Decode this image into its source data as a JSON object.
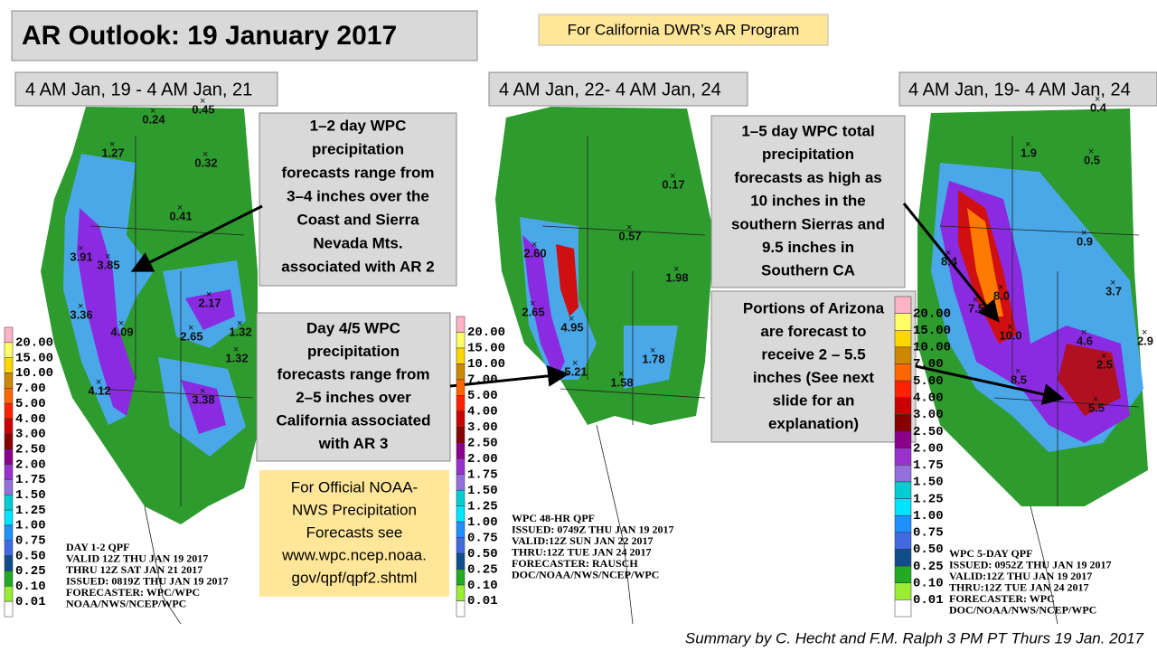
{
  "header": {
    "title": "AR Outlook: 19 January 2017",
    "banner": "For California DWR’s AR Program"
  },
  "panels": [
    {
      "period": "4 AM Jan, 19 - 4 AM Jan, 21",
      "map_values": [
        "0.24",
        "0.45",
        "1.27",
        "0.32",
        "0.41",
        "3.91",
        "3.85",
        "3.36",
        "4.09",
        "2.17",
        "2.65",
        "1.32",
        "1.32",
        "4.12",
        "3.38"
      ],
      "legend": [
        "20.00",
        "15.00",
        "10.00",
        "7.00",
        "5.00",
        "4.00",
        "3.00",
        "2.50",
        "2.00",
        "1.75",
        "1.50",
        "1.25",
        "1.00",
        "0.75",
        "0.50",
        "0.25",
        "0.10",
        "0.01"
      ],
      "caption": [
        "DAY 1-2 QPF",
        "VALID 12Z THU JAN 19 2017",
        "THRU 12Z SAT JAN 21 2017",
        "ISSUED: 0819Z THU JAN 19 2017",
        "FORECASTER: WPC/WPC",
        "NOAA/NWS/NCEP/WPC"
      ]
    },
    {
      "period": "4 AM Jan, 22- 4 AM Jan, 24",
      "map_values": [
        "0.17",
        "0.57",
        "2.60",
        "1.98",
        "2.65",
        "4.95",
        "5.21",
        "1.78",
        "1.58"
      ],
      "legend": [
        "20.00",
        "15.00",
        "10.00",
        "7.00",
        "5.00",
        "4.00",
        "3.00",
        "2.50",
        "2.00",
        "1.75",
        "1.50",
        "1.25",
        "1.00",
        "0.75",
        "0.50",
        "0.25",
        "0.10",
        "0.01"
      ],
      "caption": [
        "WPC 48-HR QPF",
        "ISSUED: 0749Z THU JAN 19 2017",
        "VALID:12Z SUN JAN 22 2017",
        "THRU:12Z TUE JAN 24 2017",
        "FORECASTER: RAUSCH",
        "DOC/NOAA/NWS/NCEP/WPC"
      ]
    },
    {
      "period": "4 AM Jan, 19- 4 AM Jan, 24",
      "map_values": [
        "0.4",
        "1.9",
        "0.5",
        "0.9",
        "8.4",
        "8.0",
        "7.5",
        "10.0",
        "3.7",
        "4.6",
        "2.9",
        "8.5",
        "2.5",
        "5.5"
      ],
      "legend": [
        "20.00",
        "15.00",
        "10.00",
        "7.00",
        "5.00",
        "4.00",
        "3.00",
        "2.50",
        "2.00",
        "1.75",
        "1.50",
        "1.25",
        "1.00",
        "0.75",
        "0.50",
        "0.25",
        "0.10",
        "0.01"
      ],
      "caption": [
        "WPC 5-DAY QPF",
        "ISSUED: 0952Z THU JAN 19 2017",
        "VALID:12Z THU JAN 19 2017",
        "THRU:12Z TUE JAN 24 2017",
        "FORECASTER: WPC",
        "DOC/NOAA/NWS/NCEP/WPC"
      ]
    }
  ],
  "callouts": [
    {
      "lines": [
        "1–2 day WPC",
        "precipitation",
        "forecasts range from",
        "3–4 inches over the",
        "Coast and Sierra",
        "Nevada Mts.",
        "associated  with AR 2"
      ]
    },
    {
      "lines": [
        "Day 4/5 WPC",
        "precipitation",
        "forecasts range from",
        "2–5 inches over",
        "California  associated",
        "with AR 3"
      ]
    },
    {
      "lines": [
        "1–5 day WPC total",
        "precipitation",
        "forecasts as high as",
        "10 inches in the",
        "southern  Sierras and",
        "9.5 inches in",
        "Southern CA"
      ]
    },
    {
      "lines": [
        "Portions of Arizona",
        "are forecast to",
        "receive 2 – 5.5",
        "inches (See next",
        "slide for an",
        "explanation)"
      ]
    }
  ],
  "official_note": {
    "lines": [
      "For Official NOAA-",
      "NWS Precipitation",
      "Forecasts see",
      "www.wpc.ncep.noaa.",
      "gov/qpf/qpf2.shtml"
    ]
  },
  "footer": "Summary by C. Hecht and F.M. Ralph 3 PM PT Thurs 19 Jan. 2017"
}
